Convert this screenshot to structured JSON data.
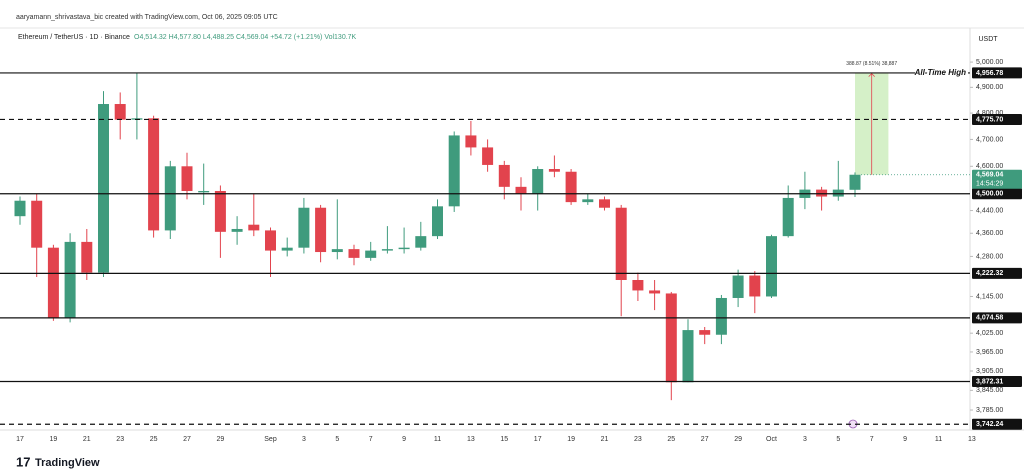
{
  "header": {
    "credit": "aaryamann_shrivastava_bic created with TradingView.com, Oct 06, 2025 09:05 UTC",
    "symbol": "Ethereum / TetherUS · 1D · Binance",
    "ohlc": "O4,514.32 H4,577.80 L4,488.25 C4,569.04 +54.72 (+1.21%) Vol130.7K",
    "currency": "USDT"
  },
  "footer": {
    "brand": "TradingView"
  },
  "chart_data": {
    "type": "candlestick",
    "log_scale": true,
    "up_color": "#3f9b7d",
    "down_color": "#e2434d",
    "categories": [
      "17",
      null,
      "19",
      null,
      "21",
      null,
      "23",
      null,
      "25",
      null,
      "27",
      null,
      "29",
      null,
      null,
      "Sep",
      null,
      "3",
      null,
      "5",
      null,
      "7",
      null,
      "9",
      null,
      "11",
      null,
      "13",
      null,
      "15",
      null,
      "17",
      null,
      "19",
      null,
      "21",
      null,
      "23",
      null,
      "25",
      null,
      "27",
      null,
      "29",
      null,
      "Oct",
      null,
      "3",
      null,
      "5",
      null,
      "7",
      null,
      "9",
      null,
      "11",
      null,
      "13"
    ],
    "open": [
      4420,
      4475,
      4310,
      4075,
      4330,
      4225,
      4835,
      4775,
      4780,
      4370,
      4600,
      4505,
      4510,
      4365,
      4390,
      4370,
      4300,
      4310,
      4450,
      4295,
      4305,
      4275,
      4300,
      4305,
      4310,
      4350,
      4455,
      4715,
      4670,
      4605,
      4525,
      4500,
      4590,
      4580,
      4470,
      4480,
      4450,
      4200,
      4165,
      4155,
      3870,
      4035,
      4020,
      4140,
      4215,
      4145,
      4350,
      4485,
      4515,
      4490,
      4514.32,
      null,
      null,
      null,
      null,
      null,
      null,
      null
    ],
    "high": [
      4490,
      4500,
      4320,
      4360,
      4375,
      4885,
      4880,
      4956.78,
      4790,
      4620,
      4650,
      4610,
      4530,
      4420,
      4500,
      4380,
      4345,
      4485,
      4460,
      4480,
      4320,
      4330,
      4385,
      4380,
      4400,
      4480,
      4730,
      4770,
      4700,
      4620,
      4560,
      4600,
      4640,
      4590,
      4500,
      4490,
      4460,
      4225,
      4200,
      4160,
      4070,
      4045,
      4150,
      4235,
      4230,
      4355,
      4530,
      4580,
      4525,
      4620,
      4577.8,
      null,
      null,
      null,
      null,
      null,
      null,
      null
    ],
    "low": [
      4390,
      4210,
      4065,
      4060,
      4200,
      4210,
      4700,
      4700,
      4345,
      4340,
      4480,
      4460,
      4275,
      4320,
      4350,
      4210,
      4280,
      4290,
      4260,
      4270,
      4250,
      4265,
      4290,
      4290,
      4300,
      4340,
      4435,
      4640,
      4580,
      4480,
      4440,
      4440,
      4560,
      4460,
      4460,
      4440,
      4080,
      4130,
      4100,
      3815,
      3870,
      3990,
      3990,
      4110,
      4090,
      4140,
      4345,
      4445,
      4440,
      4475,
      4488.25,
      null,
      null,
      null,
      null,
      null,
      null,
      null
    ],
    "close": [
      4475,
      4310,
      4075,
      4330,
      4225,
      4835,
      4775,
      4780,
      4370,
      4600,
      4510,
      4510,
      4365,
      4375,
      4370,
      4300,
      4310,
      4450,
      4295,
      4305,
      4275,
      4300,
      4305,
      4310,
      4350,
      4455,
      4715,
      4670,
      4605,
      4525,
      4500,
      4590,
      4580,
      4470,
      4480,
      4450,
      4200,
      4165,
      4155,
      3870,
      4035,
      4020,
      4140,
      4215,
      4145,
      4350,
      4485,
      4515,
      4490,
      4515,
      4569.04,
      null,
      null,
      null,
      null,
      null,
      null,
      null
    ],
    "ylim": [
      3725,
      5130
    ],
    "yticks": [
      {
        "value": 5000,
        "label": "5,000.00"
      },
      {
        "value": 4900,
        "label": "4,900.00"
      },
      {
        "value": 4800,
        "label": "4,800.00"
      },
      {
        "value": 4700,
        "label": "4,700.00"
      },
      {
        "value": 4600,
        "label": "4,600.00"
      },
      {
        "value": 4440,
        "label": "4,440.00"
      },
      {
        "value": 4360,
        "label": "4,360.00"
      },
      {
        "value": 4280,
        "label": "4,280.00"
      },
      {
        "value": 4145,
        "label": "4,145.00"
      },
      {
        "value": 4025,
        "label": "4,025.00"
      },
      {
        "value": 3965,
        "label": "3,965.00"
      },
      {
        "value": 3905,
        "label": "3,905.00"
      },
      {
        "value": 3845,
        "label": "3,845.00"
      },
      {
        "value": 3785,
        "label": "3,785.00"
      }
    ],
    "levels": {
      "values": [
        4956.78,
        4775.7,
        4500.0,
        4222.32,
        4074.58,
        3872.31,
        3742.24
      ],
      "value_labels": [
        "4,956.78",
        "4,775.70",
        "4,500.00",
        "4,222.32",
        "4,074.58",
        "3,872.31",
        "3,742.24"
      ],
      "dashed": [
        false,
        true,
        false,
        false,
        false,
        false,
        true
      ]
    },
    "ath_label": "All-Time High",
    "last_price": {
      "value": 4569.04,
      "label": "4,569.04",
      "countdown": "14:54:29"
    },
    "measure": {
      "from": 4569.04,
      "to": 4957.91,
      "label": "388.87 (8.51%) 38,887",
      "color": "#d5f0c8"
    }
  }
}
